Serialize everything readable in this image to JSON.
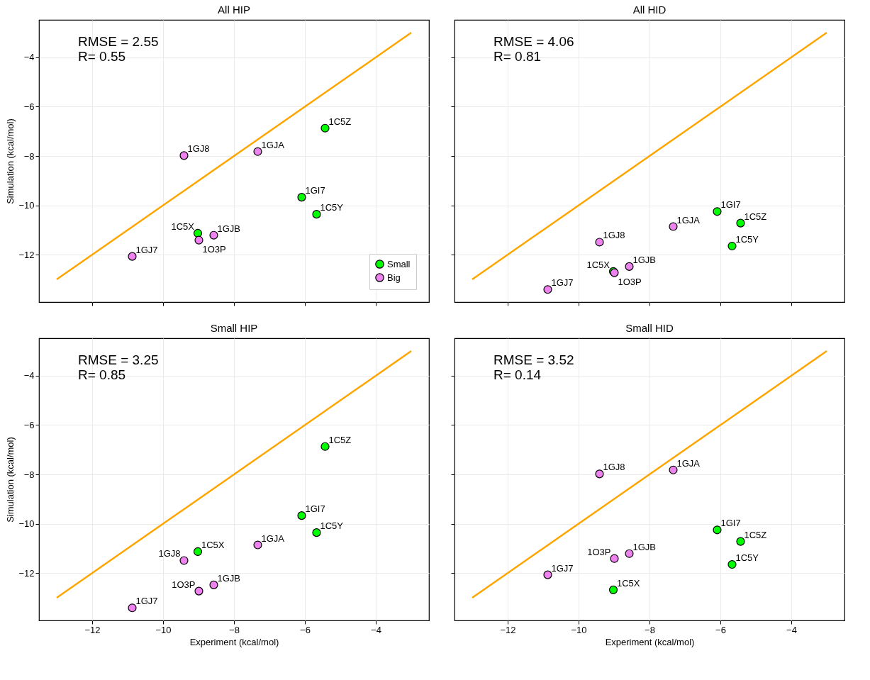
{
  "chart_data": [
    {
      "type": "scatter",
      "title": "All HIP",
      "ylabel": "Simulation (kcal/mol)",
      "xlim": [
        -13.5,
        -2.5
      ],
      "ylim": [
        -13.92,
        -2.48
      ],
      "xticks": [
        -12,
        -10,
        -8,
        -6,
        -4
      ],
      "yticks": [
        -12,
        -10,
        -8,
        -6,
        -4
      ],
      "grid": true,
      "legend": "bottom right",
      "tick_labels": "y",
      "annotations": [
        "RMSE = 2.55\nR= 0.55",
        {
          "text": "1C5X",
          "x": -9.02,
          "y": -11.13
        },
        {
          "text": "1GI7",
          "x": -6.09,
          "y": -9.67
        },
        {
          "text": "1C5Y",
          "x": -5.67,
          "y": -10.36
        },
        {
          "text": "1C5Z",
          "x": -5.43,
          "y": -6.87
        },
        {
          "text": "1GJ7",
          "x": -10.87,
          "y": -12.07
        },
        {
          "text": "1GJ8",
          "x": -9.41,
          "y": -7.98
        },
        {
          "text": "1O3P",
          "x": -8.99,
          "y": -11.41
        },
        {
          "text": "1GJB",
          "x": -8.57,
          "y": -11.21
        },
        {
          "text": "1GJA",
          "x": -7.33,
          "y": -7.82
        }
      ],
      "series": [
        {
          "type": "line",
          "color": "#ffa500",
          "line_style": "solid",
          "marker": "none",
          "x": [
            -13,
            -3
          ],
          "values": [
            -13,
            -3
          ]
        },
        {
          "name": "Small",
          "color": "#00ff00",
          "marker": "circle",
          "x": [
            -9.02,
            -6.09,
            -5.67,
            -5.43
          ],
          "values": [
            -11.13,
            -9.67,
            -10.36,
            -6.87
          ]
        },
        {
          "name": "Big",
          "color": "#ee82ee",
          "marker": "circle",
          "x": [
            -10.87,
            -9.41,
            -8.99,
            -8.57,
            -7.33
          ],
          "values": [
            -12.07,
            -7.98,
            -11.41,
            -11.21,
            -7.82
          ]
        }
      ]
    },
    {
      "type": "scatter",
      "title": "All HID",
      "xlim": [
        -13.5,
        -2.5
      ],
      "ylim": [
        -13.92,
        -2.48
      ],
      "xticks": [
        -12,
        -10,
        -8,
        -6,
        -4
      ],
      "yticks": [
        -12,
        -10,
        -8,
        -6,
        -4
      ],
      "grid": true,
      "tick_labels": false,
      "annotations": [
        "RMSE = 4.06\nR= 0.81",
        {
          "text": "1C5X",
          "x": -9.02,
          "y": -12.68
        },
        {
          "text": "1GI7",
          "x": -6.09,
          "y": -10.25
        },
        {
          "text": "1C5Y",
          "x": -5.67,
          "y": -11.65
        },
        {
          "text": "1C5Z",
          "x": -5.43,
          "y": -10.72
        },
        {
          "text": "1GJ7",
          "x": -10.87,
          "y": -13.41
        },
        {
          "text": "1GJ8",
          "x": -9.41,
          "y": -11.49
        },
        {
          "text": "1O3P",
          "x": -8.99,
          "y": -12.73
        },
        {
          "text": "1GJB",
          "x": -8.57,
          "y": -12.48
        },
        {
          "text": "1GJA",
          "x": -7.33,
          "y": -10.86
        }
      ],
      "series": [
        {
          "type": "line",
          "color": "#ffa500",
          "line_style": "solid",
          "marker": "none",
          "x": [
            -13,
            -3
          ],
          "values": [
            -13,
            -3
          ]
        },
        {
          "color": "#00ff00",
          "marker": "circle",
          "x": [
            -9.02,
            -6.09,
            -5.67,
            -5.43
          ],
          "values": [
            -12.68,
            -10.25,
            -11.65,
            -10.72
          ]
        },
        {
          "color": "#ee82ee",
          "marker": "circle",
          "x": [
            -10.87,
            -9.41,
            -8.99,
            -8.57,
            -7.33
          ],
          "values": [
            -13.41,
            -11.49,
            -12.73,
            -12.48,
            -10.86
          ]
        }
      ]
    },
    {
      "type": "scatter",
      "title": "Small HIP",
      "xlabel": "Experiment (kcal/mol)",
      "ylabel": "Simulation (kcal/mol)",
      "xlim": [
        -13.5,
        -2.5
      ],
      "ylim": [
        -13.92,
        -2.48
      ],
      "xticks": [
        -12,
        -10,
        -8,
        -6,
        -4
      ],
      "yticks": [
        -12,
        -10,
        -8,
        -6,
        -4
      ],
      "grid": true,
      "annotations": [
        "RMSE = 3.25\nR= 0.85",
        {
          "text": "1C5X",
          "x": -9.02,
          "y": -11.13
        },
        {
          "text": "1GI7",
          "x": -6.09,
          "y": -9.67
        },
        {
          "text": "1C5Y",
          "x": -5.67,
          "y": -10.36
        },
        {
          "text": "1C5Z",
          "x": -5.43,
          "y": -6.87
        },
        {
          "text": "1GJ7",
          "x": -10.87,
          "y": -13.41
        },
        {
          "text": "1GJ8",
          "x": -9.41,
          "y": -11.49
        },
        {
          "text": "1O3P",
          "x": -8.99,
          "y": -12.73
        },
        {
          "text": "1GJB",
          "x": -8.57,
          "y": -12.48
        },
        {
          "text": "1GJA",
          "x": -7.33,
          "y": -10.86
        }
      ],
      "series": [
        {
          "type": "line",
          "color": "#ffa500",
          "line_style": "solid",
          "marker": "none",
          "x": [
            -13,
            -3
          ],
          "values": [
            -13,
            -3
          ]
        },
        {
          "color": "#00ff00",
          "marker": "circle",
          "x": [
            -9.02,
            -6.09,
            -5.67,
            -5.43
          ],
          "values": [
            -11.13,
            -9.67,
            -10.36,
            -6.87
          ]
        },
        {
          "color": "#ee82ee",
          "marker": "circle",
          "x": [
            -10.87,
            -9.41,
            -8.99,
            -8.57,
            -7.33
          ],
          "values": [
            -13.41,
            -11.49,
            -12.73,
            -12.48,
            -10.86
          ]
        }
      ]
    },
    {
      "type": "scatter",
      "title": "Small HID",
      "xlabel": "Experiment (kcal/mol)",
      "xlim": [
        -13.5,
        -2.5
      ],
      "ylim": [
        -13.92,
        -2.48
      ],
      "xticks": [
        -12,
        -10,
        -8,
        -6,
        -4
      ],
      "yticks": [
        -12,
        -10,
        -8,
        -6,
        -4
      ],
      "grid": true,
      "tick_labels": "x",
      "annotations": [
        "RMSE = 3.52\nR= 0.14",
        {
          "text": "1C5X",
          "x": -9.02,
          "y": -12.68
        },
        {
          "text": "1GI7",
          "x": -6.09,
          "y": -10.25
        },
        {
          "text": "1C5Y",
          "x": -5.67,
          "y": -11.65
        },
        {
          "text": "1C5Z",
          "x": -5.43,
          "y": -10.72
        },
        {
          "text": "1GJ7",
          "x": -10.87,
          "y": -12.07
        },
        {
          "text": "1GJ8",
          "x": -9.41,
          "y": -7.98
        },
        {
          "text": "1O3P",
          "x": -8.99,
          "y": -11.41
        },
        {
          "text": "1GJB",
          "x": -8.57,
          "y": -11.21
        },
        {
          "text": "1GJA",
          "x": -7.33,
          "y": -7.82
        }
      ],
      "series": [
        {
          "type": "line",
          "color": "#ffa500",
          "line_style": "solid",
          "marker": "none",
          "x": [
            -13,
            -3
          ],
          "values": [
            -13,
            -3
          ]
        },
        {
          "color": "#00ff00",
          "marker": "circle",
          "x": [
            -9.02,
            -6.09,
            -5.67,
            -5.43
          ],
          "values": [
            -12.68,
            -10.25,
            -11.65,
            -10.72
          ]
        },
        {
          "color": "#ee82ee",
          "marker": "circle",
          "x": [
            -10.87,
            -9.41,
            -8.99,
            -8.57,
            -7.33
          ],
          "values": [
            -12.07,
            -7.98,
            -11.41,
            -11.21,
            -7.82
          ]
        }
      ]
    }
  ]
}
